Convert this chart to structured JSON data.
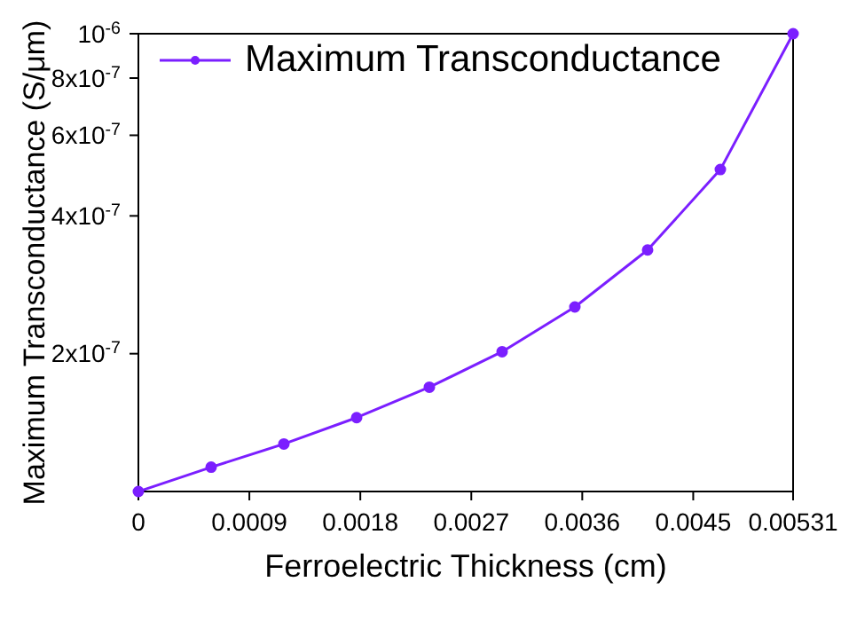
{
  "chart_data": {
    "type": "line",
    "xlabel": "Ferroelectric Thickness (cm)",
    "ylabel": "Maximum Transconductance (S/μm)",
    "x": [
      0,
      0.00059,
      0.00118,
      0.00177,
      0.00236,
      0.00295,
      0.00354,
      0.00413,
      0.00472,
      0.00531
    ],
    "series": [
      {
        "name": "Maximum Transconductance",
        "color": "#7b1fff",
        "values": [
          1e-07,
          1.13e-07,
          1.27e-07,
          1.45e-07,
          1.69e-07,
          2.02e-07,
          2.53e-07,
          3.37e-07,
          5.05e-07,
          1e-06
        ]
      }
    ],
    "xlim": [
      0,
      0.00531
    ],
    "xticks": [
      0,
      0.0009,
      0.0018,
      0.0027,
      0.0036,
      0.0045,
      0.00531
    ],
    "ylim": [
      1e-07,
      1e-06
    ],
    "log": true,
    "yticks": [
      {
        "value": 2e-07,
        "label": "2x10$^{-7}$"
      },
      {
        "value": 4e-07,
        "label": "4x10$^{-7}$"
      },
      {
        "value": 6e-07,
        "label": "6x10$^{-7}$"
      },
      {
        "value": 8e-07,
        "label": "8x10$^{-7}$"
      },
      {
        "value": 1e-06,
        "label": "10$^{-6}$"
      }
    ],
    "legend": "top left",
    "marker": "circle",
    "line_style": "solid",
    "grid": false
  }
}
